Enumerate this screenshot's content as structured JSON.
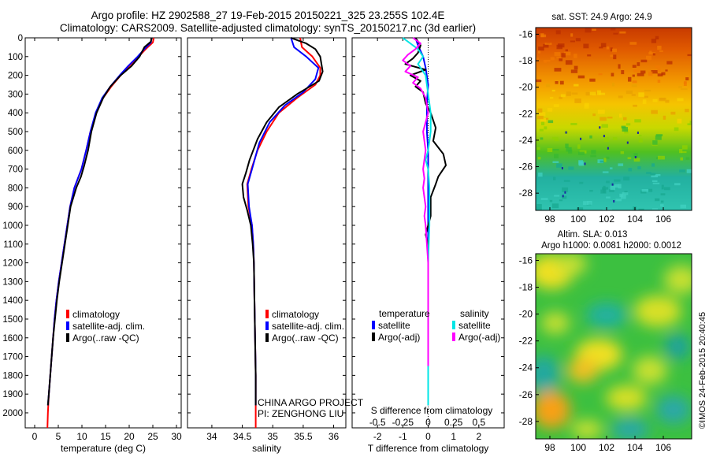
{
  "titles": {
    "line1": "Argo profile: HZ 2902588_27 19-Feb-2015 20150221_325 23.255S 102.4E",
    "line2": "Climatology: CARS2009. Satellite-adjusted climatology: synTS_20150217.nc (3d earlier)"
  },
  "credit": "©IMOS 24-Feb-2015 20:40:45",
  "colors": {
    "climatology": "#ff0000",
    "satellite": "#0000ff",
    "argo": "#000000",
    "salinity_satellite": "#00e5e5",
    "salinity_argo": "#ff00ff"
  },
  "chart_data": [
    {
      "type": "line",
      "id": "temperature",
      "xlabel": "temperature (deg C)",
      "ylabel": "",
      "xlim": [
        -2,
        31
      ],
      "ylim": [
        2080,
        0
      ],
      "xticks": [
        0,
        5,
        10,
        15,
        20,
        25,
        30
      ],
      "yticks": [
        0,
        100,
        200,
        300,
        400,
        500,
        600,
        700,
        800,
        900,
        1000,
        1100,
        1200,
        1300,
        1400,
        1500,
        1600,
        1700,
        1800,
        1900,
        2000
      ],
      "legend": [
        "climatology",
        "satellite-adj. clim.",
        "Argo(..raw -QC)"
      ],
      "legend_placement": "bottom-center",
      "series": [
        {
          "key": "climatology",
          "color": "#ff0000",
          "points": [
            [
              25.2,
              0
            ],
            [
              25.0,
              25
            ],
            [
              23.5,
              60
            ],
            [
              22.0,
              100
            ],
            [
              20.0,
              150
            ],
            [
              18.2,
              200
            ],
            [
              16.2,
              260
            ],
            [
              14.5,
              320
            ],
            [
              13.0,
              400
            ],
            [
              11.8,
              500
            ],
            [
              10.9,
              600
            ],
            [
              9.9,
              700
            ],
            [
              8.4,
              800
            ],
            [
              7.5,
              900
            ],
            [
              6.9,
              1000
            ],
            [
              6.3,
              1100
            ],
            [
              5.7,
              1200
            ],
            [
              5.1,
              1300
            ],
            [
              4.6,
              1400
            ],
            [
              4.2,
              1500
            ],
            [
              3.9,
              1600
            ],
            [
              3.6,
              1700
            ],
            [
              3.3,
              1800
            ],
            [
              3.0,
              1900
            ],
            [
              2.8,
              2000
            ],
            [
              2.7,
              2080
            ]
          ]
        },
        {
          "key": "satellite",
          "color": "#0000ff",
          "points": [
            [
              24.7,
              0
            ],
            [
              24.6,
              25
            ],
            [
              23.2,
              60
            ],
            [
              21.8,
              100
            ],
            [
              19.8,
              150
            ],
            [
              18.0,
              200
            ],
            [
              16.0,
              260
            ],
            [
              14.3,
              320
            ],
            [
              12.9,
              400
            ],
            [
              11.8,
              500
            ],
            [
              10.9,
              600
            ],
            [
              9.9,
              700
            ],
            [
              8.4,
              800
            ],
            [
              7.5,
              900
            ],
            [
              6.9,
              1000
            ],
            [
              6.3,
              1100
            ],
            [
              5.7,
              1200
            ],
            [
              5.1,
              1300
            ],
            [
              4.6,
              1400
            ],
            [
              4.2,
              1500
            ],
            [
              3.9,
              1600
            ],
            [
              3.6,
              1700
            ],
            [
              3.3,
              1800
            ],
            [
              3.0,
              1900
            ],
            [
              2.8,
              1960
            ]
          ]
        },
        {
          "key": "argo",
          "color": "#000000",
          "points": [
            [
              24.7,
              0
            ],
            [
              24.6,
              20
            ],
            [
              23.2,
              50
            ],
            [
              22.2,
              100
            ],
            [
              20.5,
              150
            ],
            [
              18.2,
              200
            ],
            [
              16.0,
              260
            ],
            [
              14.5,
              320
            ],
            [
              13.1,
              400
            ],
            [
              12.0,
              500
            ],
            [
              11.3,
              600
            ],
            [
              10.5,
              680
            ],
            [
              9.8,
              740
            ],
            [
              8.8,
              800
            ],
            [
              7.6,
              900
            ],
            [
              7.0,
              1000
            ],
            [
              6.4,
              1100
            ],
            [
              5.8,
              1200
            ],
            [
              5.2,
              1300
            ],
            [
              4.7,
              1400
            ],
            [
              4.3,
              1500
            ],
            [
              3.9,
              1600
            ],
            [
              3.6,
              1700
            ],
            [
              3.3,
              1800
            ],
            [
              3.0,
              1900
            ],
            [
              2.8,
              1960
            ]
          ]
        }
      ]
    },
    {
      "type": "line",
      "id": "salinity",
      "xlabel": "salinity",
      "ylabel": "",
      "xlim": [
        33.6,
        36.2
      ],
      "ylim": [
        2080,
        0
      ],
      "xticks": [
        34,
        34.5,
        35,
        35.5,
        36
      ],
      "legend": [
        "climatology",
        "satellite-adj. clim.",
        "Argo(..raw -QC)"
      ],
      "legend_placement": "bottom-center",
      "annotations": [
        "CHINA ARGO PROJECT",
        "PI: ZENGHONG LIU"
      ],
      "series": [
        {
          "key": "climatology",
          "color": "#ff0000",
          "points": [
            [
              35.45,
              0
            ],
            [
              35.48,
              50
            ],
            [
              35.65,
              100
            ],
            [
              35.78,
              160
            ],
            [
              35.78,
              200
            ],
            [
              35.7,
              250
            ],
            [
              35.4,
              320
            ],
            [
              35.1,
              400
            ],
            [
              34.9,
              500
            ],
            [
              34.75,
              600
            ],
            [
              34.65,
              700
            ],
            [
              34.58,
              780
            ],
            [
              34.6,
              900
            ],
            [
              34.66,
              1000
            ],
            [
              34.68,
              1100
            ],
            [
              34.69,
              1200
            ],
            [
              34.7,
              1400
            ],
            [
              34.71,
              1600
            ],
            [
              34.72,
              1800
            ],
            [
              34.72,
              2000
            ],
            [
              34.72,
              2080
            ]
          ]
        },
        {
          "key": "satellite",
          "color": "#0000ff",
          "points": [
            [
              35.3,
              0
            ],
            [
              35.35,
              50
            ],
            [
              35.55,
              100
            ],
            [
              35.75,
              160
            ],
            [
              35.7,
              220
            ],
            [
              35.5,
              290
            ],
            [
              35.2,
              360
            ],
            [
              34.95,
              450
            ],
            [
              34.78,
              560
            ],
            [
              34.66,
              700
            ],
            [
              34.59,
              780
            ],
            [
              34.61,
              900
            ],
            [
              34.66,
              1000
            ],
            [
              34.68,
              1100
            ],
            [
              34.69,
              1200
            ],
            [
              34.7,
              1400
            ],
            [
              34.71,
              1600
            ],
            [
              34.72,
              1800
            ],
            [
              34.72,
              1960
            ]
          ]
        },
        {
          "key": "argo",
          "color": "#000000",
          "points": [
            [
              35.3,
              0
            ],
            [
              35.55,
              30
            ],
            [
              35.7,
              60
            ],
            [
              35.78,
              100
            ],
            [
              35.82,
              180
            ],
            [
              35.76,
              230
            ],
            [
              35.4,
              300
            ],
            [
              35.1,
              370
            ],
            [
              34.9,
              450
            ],
            [
              34.75,
              540
            ],
            [
              34.62,
              650
            ],
            [
              34.56,
              720
            ],
            [
              34.5,
              780
            ],
            [
              34.52,
              850
            ],
            [
              34.58,
              920
            ],
            [
              34.64,
              1000
            ],
            [
              34.67,
              1100
            ],
            [
              34.69,
              1200
            ],
            [
              34.7,
              1400
            ],
            [
              34.71,
              1600
            ],
            [
              34.72,
              1800
            ],
            [
              34.72,
              1960
            ]
          ]
        }
      ]
    },
    {
      "type": "line",
      "id": "difference",
      "xlabel": "T difference from climatology",
      "xlabel_top": "S difference from climatology",
      "ylabel": "",
      "xlim": [
        -3,
        3
      ],
      "ylim": [
        2080,
        0
      ],
      "xticks": [
        -2,
        -1,
        0,
        1,
        2
      ],
      "xticks_salinity_labels": [
        "-0.5",
        "-0.25",
        "0",
        "0.25",
        "0.5"
      ],
      "legend_groups": {
        "temperature": [
          "satellite",
          "Argo(-adj)"
        ],
        "salinity": [
          "satellite",
          "Argo(-adj)"
        ]
      },
      "legend_placement": "bottom",
      "series": [
        {
          "key": "t_satellite",
          "color": "#0000ff",
          "points": [
            [
              -0.5,
              0
            ],
            [
              -0.4,
              40
            ],
            [
              -0.2,
              100
            ],
            [
              -0.1,
              160
            ],
            [
              0.0,
              250
            ],
            [
              -0.05,
              350
            ],
            [
              -0.05,
              500
            ],
            [
              0.0,
              600
            ],
            [
              0.0,
              700
            ],
            [
              0.0,
              800
            ],
            [
              0.0,
              1000
            ],
            [
              0.0,
              1200
            ],
            [
              0.0,
              1400
            ],
            [
              0.0,
              1600
            ],
            [
              0.0,
              1800
            ],
            [
              0.0,
              1960
            ]
          ]
        },
        {
          "key": "t_argo",
          "color": "#000000",
          "points": [
            [
              -0.5,
              0
            ],
            [
              -0.3,
              40
            ],
            [
              -0.4,
              80
            ],
            [
              -0.6,
              110
            ],
            [
              -0.9,
              140
            ],
            [
              -0.1,
              170
            ],
            [
              -0.7,
              200
            ],
            [
              -0.3,
              230
            ],
            [
              -0.5,
              260
            ],
            [
              -0.2,
              290
            ],
            [
              -0.1,
              350
            ],
            [
              0.1,
              400
            ],
            [
              0.3,
              480
            ],
            [
              0.2,
              550
            ],
            [
              0.6,
              620
            ],
            [
              0.7,
              680
            ],
            [
              0.4,
              740
            ],
            [
              0.3,
              780
            ],
            [
              0.1,
              850
            ],
            [
              0.1,
              950
            ],
            [
              0.0,
              1000
            ],
            [
              -0.1,
              1050
            ],
            [
              0.0,
              1100
            ],
            [
              0.0,
              1200
            ],
            [
              0.0,
              1400
            ],
            [
              0.0,
              1600
            ],
            [
              0.0,
              1800
            ],
            [
              0.0,
              1960
            ]
          ]
        },
        {
          "key": "s_satellite",
          "color": "#00e5e5",
          "points": [
            [
              -1.0,
              0
            ],
            [
              -0.4,
              60
            ],
            [
              -0.2,
              100
            ],
            [
              -0.4,
              140
            ],
            [
              -0.1,
              200
            ],
            [
              0.0,
              300
            ],
            [
              0.1,
              400
            ],
            [
              0.1,
              500
            ],
            [
              0.0,
              600
            ],
            [
              -0.1,
              650
            ],
            [
              0.0,
              700
            ],
            [
              0.05,
              800
            ],
            [
              0.05,
              1000
            ],
            [
              0.0,
              1200
            ],
            [
              0.0,
              1500
            ],
            [
              0.0,
              1800
            ],
            [
              0.0,
              1960
            ]
          ]
        },
        {
          "key": "s_argo",
          "color": "#ff00ff",
          "points": [
            [
              -0.6,
              0
            ],
            [
              -0.3,
              30
            ],
            [
              -0.5,
              60
            ],
            [
              -0.8,
              90
            ],
            [
              -1.0,
              120
            ],
            [
              -0.7,
              150
            ],
            [
              -0.9,
              180
            ],
            [
              -0.4,
              210
            ],
            [
              -0.6,
              240
            ],
            [
              -0.3,
              270
            ],
            [
              -0.1,
              320
            ],
            [
              0.0,
              400
            ],
            [
              -0.2,
              500
            ],
            [
              -0.1,
              600
            ],
            [
              -0.2,
              700
            ],
            [
              -0.15,
              750
            ],
            [
              -0.2,
              800
            ],
            [
              -0.1,
              900
            ],
            [
              -0.15,
              950
            ],
            [
              -0.1,
              1000
            ],
            [
              -0.05,
              1100
            ],
            [
              0.0,
              1200
            ],
            [
              0.0,
              1400
            ],
            [
              0.0,
              1600
            ],
            [
              0.0,
              1750
            ]
          ]
        }
      ]
    },
    {
      "type": "heatmap",
      "id": "sst_map",
      "title": "sat. SST: 24.9 Argo: 24.9",
      "xlim": [
        97,
        108
      ],
      "ylim": [
        -29.3,
        -15.5
      ],
      "xticks": [
        98,
        100,
        102,
        104,
        106
      ],
      "yticks": [
        -16,
        -18,
        -20,
        -22,
        -24,
        -26,
        -28
      ]
    },
    {
      "type": "heatmap",
      "id": "sla_map",
      "title_line1": "Altim. SLA: 0.013",
      "title_line2": "Argo h1000: 0.0081 h2000: 0.0012",
      "xlim": [
        97,
        108
      ],
      "ylim": [
        -29.3,
        -15.5
      ],
      "xticks": [
        98,
        100,
        102,
        104,
        106
      ],
      "yticks": [
        -16,
        -18,
        -20,
        -22,
        -24,
        -26,
        -28
      ]
    }
  ]
}
